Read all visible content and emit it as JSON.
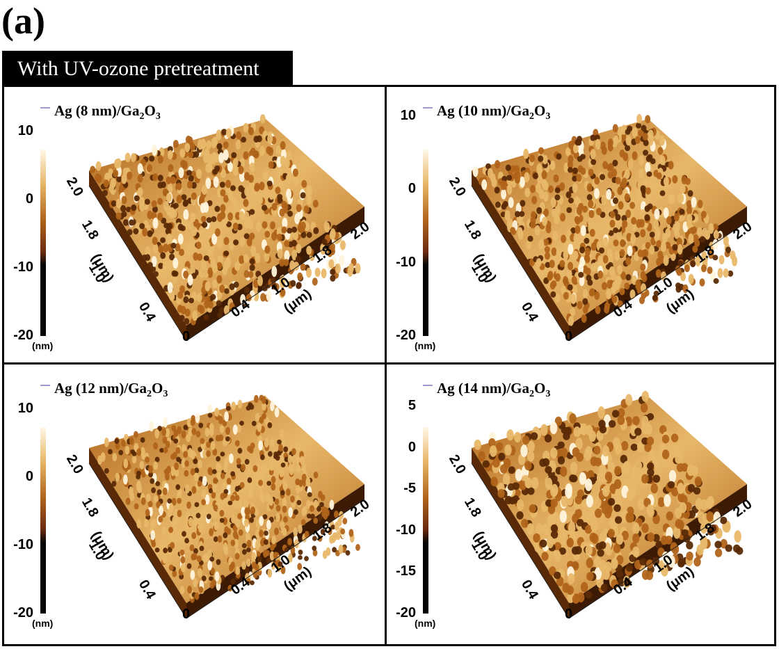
{
  "figure_label": "(a)",
  "banner": "With UV-ozone pretreatment",
  "panels": [
    {
      "title_prefix": "Ag (8 nm)/Ga",
      "title_sub1": "2",
      "title_mid": "O",
      "title_sub2": "3",
      "colorbar_ticks": [
        "10",
        "0",
        "-10",
        "-20"
      ],
      "colorbar_unit": "(nm)",
      "axis_y_ticks": [
        "2.0",
        "1.8",
        "1.0",
        "0.4"
      ],
      "axis_x_ticks": [
        "0.4",
        "1.0",
        "1.8",
        "2.0"
      ],
      "axis_origin": "0",
      "axis_unit": "(μm)"
    },
    {
      "title_prefix": "Ag (10 nm)/Ga",
      "title_sub1": "2",
      "title_mid": "O",
      "title_sub2": "3",
      "colorbar_ticks": [
        "10",
        "0",
        "-10",
        "-20"
      ],
      "colorbar_unit": "(nm)",
      "axis_y_ticks": [
        "2.0",
        "1.8",
        "1.0",
        "0.4"
      ],
      "axis_x_ticks": [
        "0.4",
        "1.0",
        "1.8",
        "2.0"
      ],
      "axis_origin": "0",
      "axis_unit": "(μm)"
    },
    {
      "title_prefix": "Ag (12 nm)/Ga",
      "title_sub1": "2",
      "title_mid": "O",
      "title_sub2": "3",
      "colorbar_ticks": [
        "10",
        "0",
        "-10",
        "-20"
      ],
      "colorbar_unit": "(nm)",
      "axis_y_ticks": [
        "2.0",
        "1.8",
        "1.0",
        "0.4"
      ],
      "axis_x_ticks": [
        "0.4",
        "1.0",
        "1.8",
        "2.0"
      ],
      "axis_origin": "0",
      "axis_unit": "(μm)"
    },
    {
      "title_prefix": "Ag (14 nm)/Ga",
      "title_sub1": "2",
      "title_mid": "O",
      "title_sub2": "3",
      "colorbar_ticks": [
        "5",
        "0",
        "-5",
        "-10",
        "-15",
        "-20"
      ],
      "colorbar_unit": "(nm)",
      "axis_y_ticks": [
        "2.0",
        "1.8",
        "1.0",
        "0.4"
      ],
      "axis_x_ticks": [
        "0.4",
        "1.0",
        "1.8",
        "2.0"
      ],
      "axis_origin": "0",
      "axis_unit": "(μm)"
    }
  ],
  "colors": {
    "surface_dark": "#5a2a06",
    "surface_mid": "#b0641a",
    "surface_light": "#e8b86a",
    "surface_peak": "#fff4dc",
    "colorbar_top": "#fff8e8",
    "colorbar_mid": "#6b2a10",
    "colorbar_bottom": "#050505"
  }
}
